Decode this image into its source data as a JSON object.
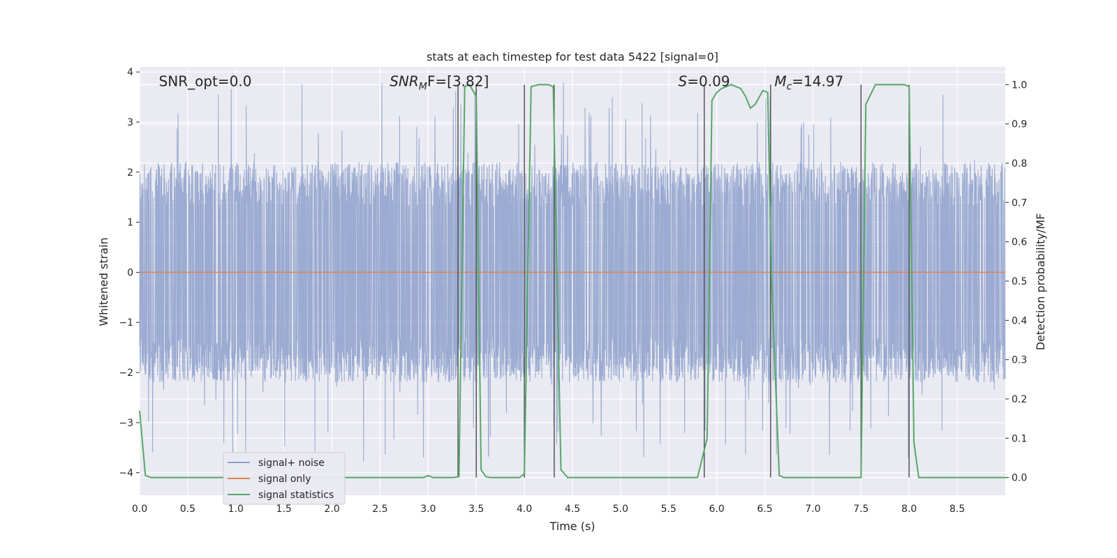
{
  "chart_data": {
    "type": "line",
    "title": "stats at each timestep for test data 5422 [signal=0]",
    "xlabel": "Time (s)",
    "ylabel_left": "Whitened strain",
    "ylabel_right": "Detection probability/MF",
    "xlim": [
      0.0,
      9.0
    ],
    "ylim_left": [
      -4.45,
      4.1
    ],
    "ylim_right": [
      -0.045,
      1.045
    ],
    "x_ticks": [
      "0.0",
      "0.5",
      "1.0",
      "1.5",
      "2.0",
      "2.5",
      "3.0",
      "3.5",
      "4.0",
      "4.5",
      "5.0",
      "5.5",
      "6.0",
      "6.5",
      "7.0",
      "7.5",
      "8.0",
      "8.5"
    ],
    "left_y_ticks": [
      -4,
      -3,
      -2,
      -1,
      0,
      1,
      2,
      3,
      4
    ],
    "left_y_tick_labels": [
      "−4",
      "−3",
      "−2",
      "−1",
      "0",
      "1",
      "2",
      "3",
      "4"
    ],
    "right_y_ticks": [
      "0.0",
      "0.1",
      "0.2",
      "0.3",
      "0.4",
      "0.5",
      "0.6",
      "0.7",
      "0.8",
      "0.9",
      "1.0"
    ],
    "grid": true,
    "legend_placement": "lower-left",
    "colors": {
      "background": "#eaeaf2",
      "grid": "#ffffff",
      "signal_noise": "#8da0cb",
      "signal_only": "#dd8452",
      "signal_statistics": "#55a868",
      "vlines": "#555555"
    },
    "series": [
      {
        "name": "signal+ noise",
        "axis": "left",
        "style": "noise",
        "mean": 0.0,
        "typical_peak": 2.2,
        "max_peak": 3.8
      },
      {
        "name": "signal only",
        "axis": "left",
        "x": [
          0.0,
          9.0
        ],
        "y": [
          0.0,
          0.0
        ]
      },
      {
        "name": "signal statistics",
        "axis": "right",
        "x": [
          0.0,
          0.06,
          0.12,
          0.5,
          1.0,
          1.5,
          2.0,
          2.5,
          2.95,
          3.0,
          3.05,
          3.1,
          3.25,
          3.32,
          3.38,
          3.43,
          3.5,
          3.55,
          3.6,
          3.65,
          3.75,
          3.95,
          4.0,
          4.07,
          4.15,
          4.25,
          4.3,
          4.38,
          4.45,
          5.0,
          5.5,
          5.8,
          5.9,
          5.95,
          6.0,
          6.05,
          6.1,
          6.15,
          6.25,
          6.3,
          6.35,
          6.4,
          6.48,
          6.53,
          6.57,
          6.65,
          6.7,
          7.0,
          7.5,
          7.55,
          7.65,
          7.95,
          8.0,
          8.05,
          8.1,
          8.3,
          8.5,
          9.0
        ],
        "y": [
          0.17,
          0.005,
          0.0,
          0.0,
          0.0,
          0.0,
          0.0,
          0.0,
          0.0,
          0.005,
          0.0,
          0.0,
          0.0,
          0.002,
          0.995,
          1.0,
          0.97,
          0.02,
          0.002,
          0.0,
          0.0,
          0.0,
          0.01,
          0.995,
          1.0,
          1.0,
          0.995,
          0.02,
          0.0,
          0.0,
          0.0,
          0.0,
          0.1,
          0.96,
          0.98,
          0.99,
          0.995,
          1.0,
          0.99,
          0.97,
          0.94,
          0.95,
          0.985,
          0.98,
          0.5,
          0.005,
          0.0,
          0.0,
          0.0,
          0.95,
          1.0,
          1.0,
          0.995,
          0.09,
          0.0,
          0.0,
          0.0,
          0.0
        ]
      }
    ],
    "vertical_lines": [
      {
        "x": 3.31,
        "y_top": 1.0
      },
      {
        "x": 3.5,
        "y_top": 1.0
      },
      {
        "x": 4.0,
        "y_top": 1.0
      },
      {
        "x": 4.31,
        "y_top": 1.0
      },
      {
        "x": 5.87,
        "y_top": 1.0
      },
      {
        "x": 6.56,
        "y_top": 1.0
      },
      {
        "x": 7.5,
        "y_top": 1.0
      },
      {
        "x": 8.0,
        "y_top": 1.0
      }
    ],
    "annotations": [
      {
        "x": 0.2,
        "y": 3.8,
        "text": "SNR_opt=0.0"
      },
      {
        "x": 2.6,
        "y": 3.8,
        "text": "SNR",
        "sub": "M",
        "suffix": "F=[3.82]"
      },
      {
        "x": 5.6,
        "y": 3.8,
        "text": "S",
        "suffix": "=0.09"
      },
      {
        "x": 6.6,
        "y": 3.8,
        "text": "M",
        "sub": "c",
        "suffix": "=14.97"
      }
    ]
  }
}
